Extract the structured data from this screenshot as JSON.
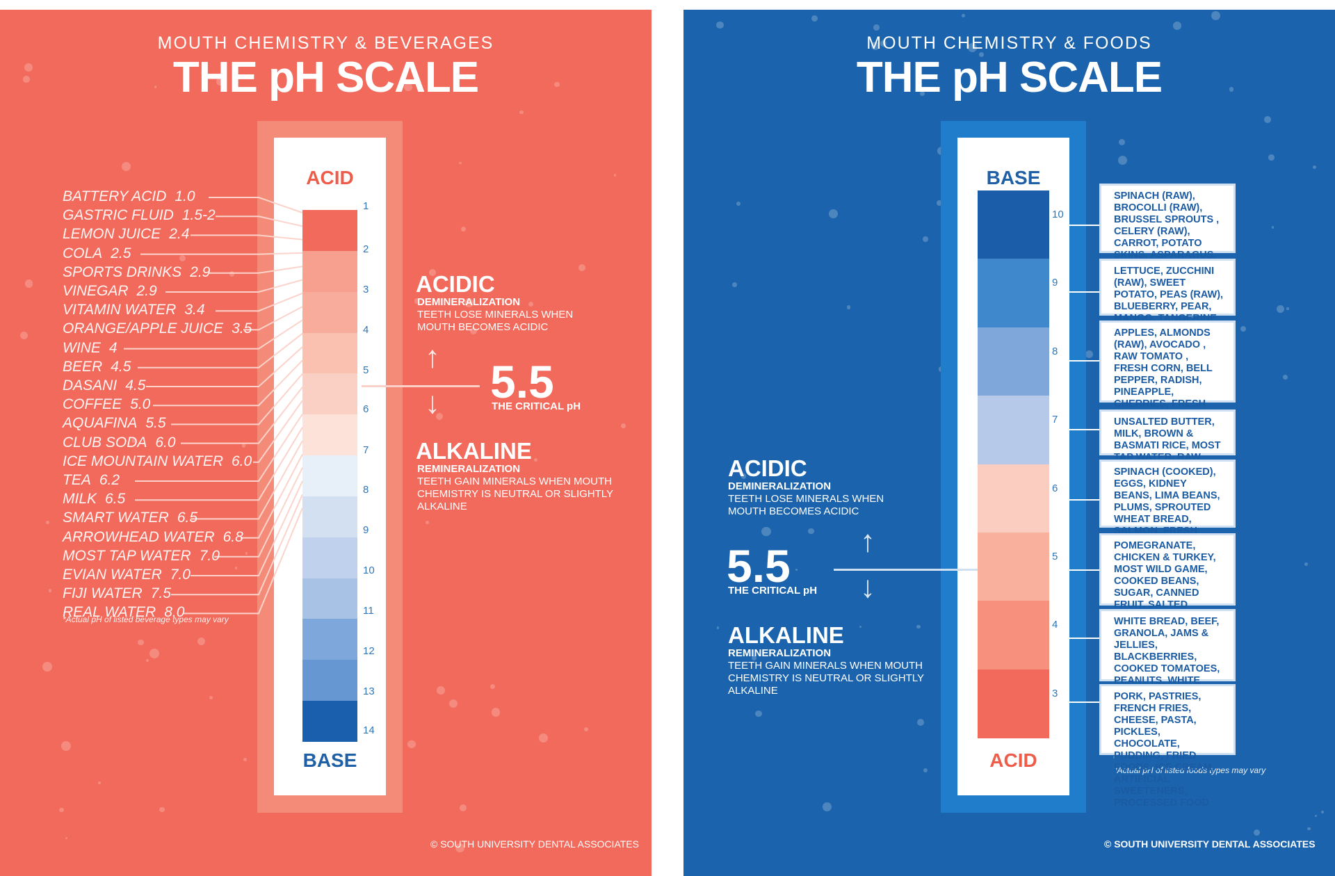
{
  "colors": {
    "coral": "#f26a5c",
    "blue": "#1b64ad",
    "acid_label": "#ee5c4a",
    "base_label": "#1f5fa6"
  },
  "left": {
    "subtitle": "MOUTH CHEMISTRY & BEVERAGES",
    "title": "THE pH SCALE",
    "scale_top_label": "ACID",
    "scale_bottom_label": "BASE",
    "ticks": [
      "1",
      "2",
      "3",
      "4",
      "5",
      "6",
      "7",
      "8",
      "9",
      "10",
      "11",
      "12",
      "13",
      "14"
    ],
    "beverages": [
      {
        "name": "BATTERY ACID",
        "value": "1.0"
      },
      {
        "name": "GASTRIC FLUID",
        "value": "1.5-2"
      },
      {
        "name": "LEMON JUICE",
        "value": "2.4"
      },
      {
        "name": "COLA",
        "value": "2.5"
      },
      {
        "name": "SPORTS DRINKS",
        "value": "2.9"
      },
      {
        "name": "VINEGAR",
        "value": "2.9"
      },
      {
        "name": "VITAMIN WATER",
        "value": "3.4"
      },
      {
        "name": "ORANGE/APPLE JUICE",
        "value": "3.5"
      },
      {
        "name": "WINE",
        "value": "4"
      },
      {
        "name": "BEER",
        "value": "4.5"
      },
      {
        "name": "DASANI",
        "value": "4.5"
      },
      {
        "name": "COFFEE",
        "value": "5.0"
      },
      {
        "name": "AQUAFINA",
        "value": "5.5"
      },
      {
        "name": "CLUB SODA",
        "value": "6.0"
      },
      {
        "name": "ICE MOUNTAIN WATER",
        "value": "6.0"
      },
      {
        "name": "TEA",
        "value": "6.2"
      },
      {
        "name": "MILK",
        "value": "6.5"
      },
      {
        "name": "SMART WATER",
        "value": "6.5"
      },
      {
        "name": "ARROWHEAD WATER",
        "value": "6.8"
      },
      {
        "name": "MOST TAP WATER",
        "value": "7.0"
      },
      {
        "name": "EVIAN WATER",
        "value": "7.0"
      },
      {
        "name": "FIJI WATER",
        "value": "7.5"
      },
      {
        "name": "REAL WATER",
        "value": "8.0"
      }
    ],
    "note": "*Actual pH of listed beverage types may vary",
    "acidic": {
      "heading": "ACIDIC",
      "sub": "DEMINERALIZATION",
      "desc": "TEETH LOSE MINERALS WHEN MOUTH BECOMES ACIDIC"
    },
    "critical": {
      "value": "5.5",
      "label": "THE CRITICAL pH"
    },
    "alkaline": {
      "heading": "ALKALINE",
      "sub": "REMINERALIZATION",
      "desc": "TEETH GAIN MINERALS WHEN MOUTH CHEMISTRY IS NEUTRAL OR SLIGHTLY ALKALINE"
    },
    "copyright": "© SOUTH UNIVERSITY DENTAL ASSOCIATES"
  },
  "right": {
    "subtitle": "MOUTH CHEMISTRY & FOODS",
    "title": "THE pH SCALE",
    "scale_top_label": "BASE",
    "scale_bottom_label": "ACID",
    "ticks": [
      "10",
      "9",
      "8",
      "7",
      "6",
      "5",
      "4",
      "3"
    ],
    "foods": [
      "SPINACH (RAW),    BROCOLLI (RAW),   BRUSSEL SPROUTS ,  CELERY (RAW),    CARROT,    POTATO SKINS,   ASPARAGUS,   WHEAT GRASS, FRESH LEMON",
      "LETTUCE,   ZUCCHINI (RAW), SWEET POTATO,   PEAS (RAW), BLUEBERRY,    PEAR,    MANGO, TANGERINE,    MELON, RAW BEETS",
      "APPLES,   ALMONDS (RAW), AVOCADO ,  RAW TOMATO , FRESH CORN,   BELL PEPPER, RADISH,   PINEAPPLE,   CHERRIES, FRESH ORANGE, FRESH GARLIC, RIPE BANANA",
      "UNSALTED BUTTER,   MILK, BROWN & BASMATI RICE, MOST TAP WATER, RAW HONEY",
      "SPINACH (COOKED),   EGGS, KIDNEY BEANS,   LIMA BEANS, PLUMS, SPROUTED WHEAT BREAD, SALMON,   FRESH TUNA, PLAIN YOGURT",
      "POMEGRANATE,  CHICKEN & TURKEY,  MOST WILD GAME, COOKED BEANS,   SUGAR, CANNED FRUIT,  SALTED BUTTER, COOKED CORN",
      "WHITE BREAD,  BEEF, GRANOLA, JAMS & JELLIES,  BLACKBERRIES, COOKED TOMATOES,   PEANUTS, WHITE SUGAR, CRANBERRIES, MICROWAVED FOODS, POPCORN",
      "PORK,   PASTRIES, FRENCH FRIES, CHEESE,   PASTA,   PICKLES, CHOCOLATE,   PUDDING, FRIED FOODS, ICE CREAM, ARTIFICIAL SWEETENERS,    PROCESSED FOOD"
    ],
    "note": "*Actual pH of listed foods types may vary",
    "acidic": {
      "heading": "ACIDIC",
      "sub": "DEMINERALIZATION",
      "desc": "TEETH LOSE MINERALS WHEN MOUTH BECOMES ACIDIC"
    },
    "critical": {
      "value": "5.5",
      "label": "THE CRITICAL pH"
    },
    "alkaline": {
      "heading": "ALKALINE",
      "sub": "REMINERALIZATION",
      "desc": "TEETH GAIN MINERALS WHEN MOUTH CHEMISTRY IS NEUTRAL OR SLIGHTLY ALKALINE"
    },
    "copyright": "© SOUTH UNIVERSITY DENTAL ASSOCIATES"
  }
}
